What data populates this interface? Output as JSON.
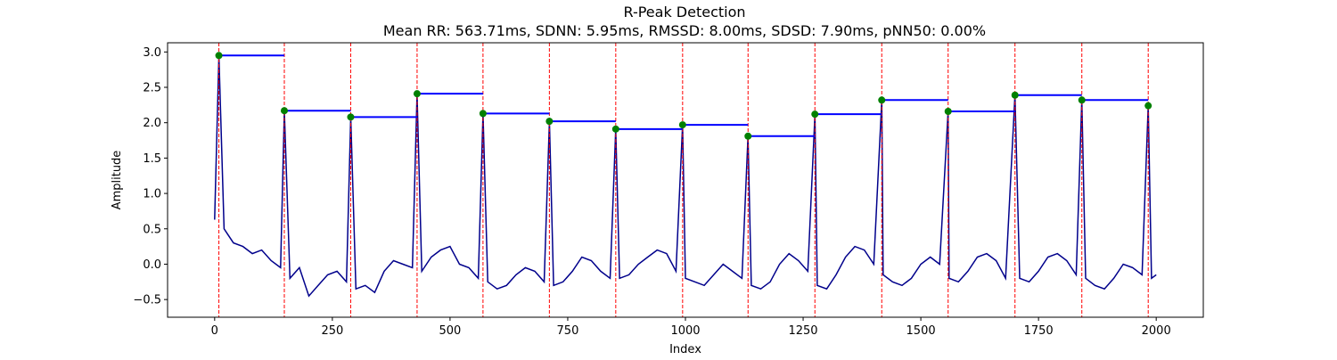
{
  "chart_data": {
    "type": "line",
    "title": "R-Peak Detection",
    "subtitle": "Mean RR: 563.71ms, SDNN: 5.95ms, RMSSD: 8.00ms, SDSD: 7.90ms, pNN50: 0.00%",
    "xlabel": "Index",
    "ylabel": "Amplitude",
    "xlim": [
      -100,
      2100
    ],
    "ylim": [
      -0.75,
      3.13
    ],
    "xticks": [
      0,
      250,
      500,
      750,
      1000,
      1250,
      1500,
      1750,
      2000
    ],
    "yticks": [
      -0.5,
      0.0,
      0.5,
      1.0,
      1.5,
      2.0,
      2.5,
      3.0
    ],
    "grid": false,
    "colors": {
      "signal": "#00008b",
      "peak_marker": "#008000",
      "peak_line": "#ff0000",
      "rr_interval": "#0000ff"
    },
    "r_peaks": {
      "x": [
        9,
        148,
        289,
        430,
        570,
        711,
        852,
        994,
        1133,
        1275,
        1417,
        1558,
        1700,
        1842,
        1983
      ],
      "y": [
        2.95,
        2.17,
        2.08,
        2.41,
        2.13,
        2.02,
        1.91,
        1.97,
        1.81,
        2.12,
        2.32,
        2.16,
        2.39,
        2.32,
        2.24
      ]
    },
    "baseline": {
      "x": [
        0,
        9,
        20,
        40,
        60,
        80,
        100,
        120,
        140,
        148,
        160,
        180,
        200,
        220,
        240,
        260,
        280,
        289,
        300,
        320,
        340,
        360,
        380,
        400,
        420,
        430,
        440,
        460,
        480,
        500,
        520,
        540,
        560,
        570,
        580,
        600,
        620,
        640,
        660,
        680,
        700,
        711,
        720,
        740,
        760,
        780,
        800,
        820,
        840,
        852,
        860,
        880,
        900,
        920,
        940,
        960,
        980,
        994,
        1000,
        1020,
        1040,
        1060,
        1080,
        1100,
        1120,
        1133,
        1140,
        1160,
        1180,
        1200,
        1220,
        1240,
        1260,
        1275,
        1280,
        1300,
        1320,
        1340,
        1360,
        1380,
        1400,
        1417,
        1420,
        1440,
        1460,
        1480,
        1500,
        1520,
        1540,
        1558,
        1560,
        1580,
        1600,
        1620,
        1640,
        1660,
        1680,
        1700,
        1710,
        1730,
        1750,
        1770,
        1790,
        1810,
        1830,
        1842,
        1850,
        1870,
        1890,
        1910,
        1930,
        1950,
        1970,
        1983,
        1990,
        2000
      ],
      "y": [
        0.63,
        2.95,
        0.5,
        0.3,
        0.25,
        0.15,
        0.2,
        0.05,
        -0.05,
        2.17,
        -0.2,
        -0.05,
        -0.45,
        -0.3,
        -0.15,
        -0.1,
        -0.25,
        2.08,
        -0.35,
        -0.3,
        -0.4,
        -0.1,
        0.05,
        0.0,
        -0.05,
        2.41,
        -0.1,
        0.1,
        0.2,
        0.25,
        0.0,
        -0.05,
        -0.2,
        2.13,
        -0.25,
        -0.35,
        -0.3,
        -0.15,
        -0.05,
        -0.1,
        -0.25,
        2.02,
        -0.3,
        -0.25,
        -0.1,
        0.1,
        0.05,
        -0.1,
        -0.2,
        1.91,
        -0.2,
        -0.15,
        0.0,
        0.1,
        0.2,
        0.15,
        -0.1,
        1.97,
        -0.2,
        -0.25,
        -0.3,
        -0.15,
        0.0,
        -0.1,
        -0.2,
        1.81,
        -0.3,
        -0.35,
        -0.25,
        0.0,
        0.15,
        0.05,
        -0.1,
        2.12,
        -0.3,
        -0.35,
        -0.15,
        0.1,
        0.25,
        0.2,
        0.0,
        2.32,
        -0.15,
        -0.25,
        -0.3,
        -0.2,
        0.0,
        0.1,
        0.0,
        2.16,
        -0.2,
        -0.25,
        -0.1,
        0.1,
        0.15,
        0.05,
        -0.2,
        2.39,
        -0.2,
        -0.25,
        -0.1,
        0.1,
        0.15,
        0.05,
        -0.15,
        2.32,
        -0.2,
        -0.3,
        -0.35,
        -0.2,
        0.0,
        -0.05,
        -0.15,
        2.24,
        -0.2,
        -0.15
      ]
    }
  }
}
